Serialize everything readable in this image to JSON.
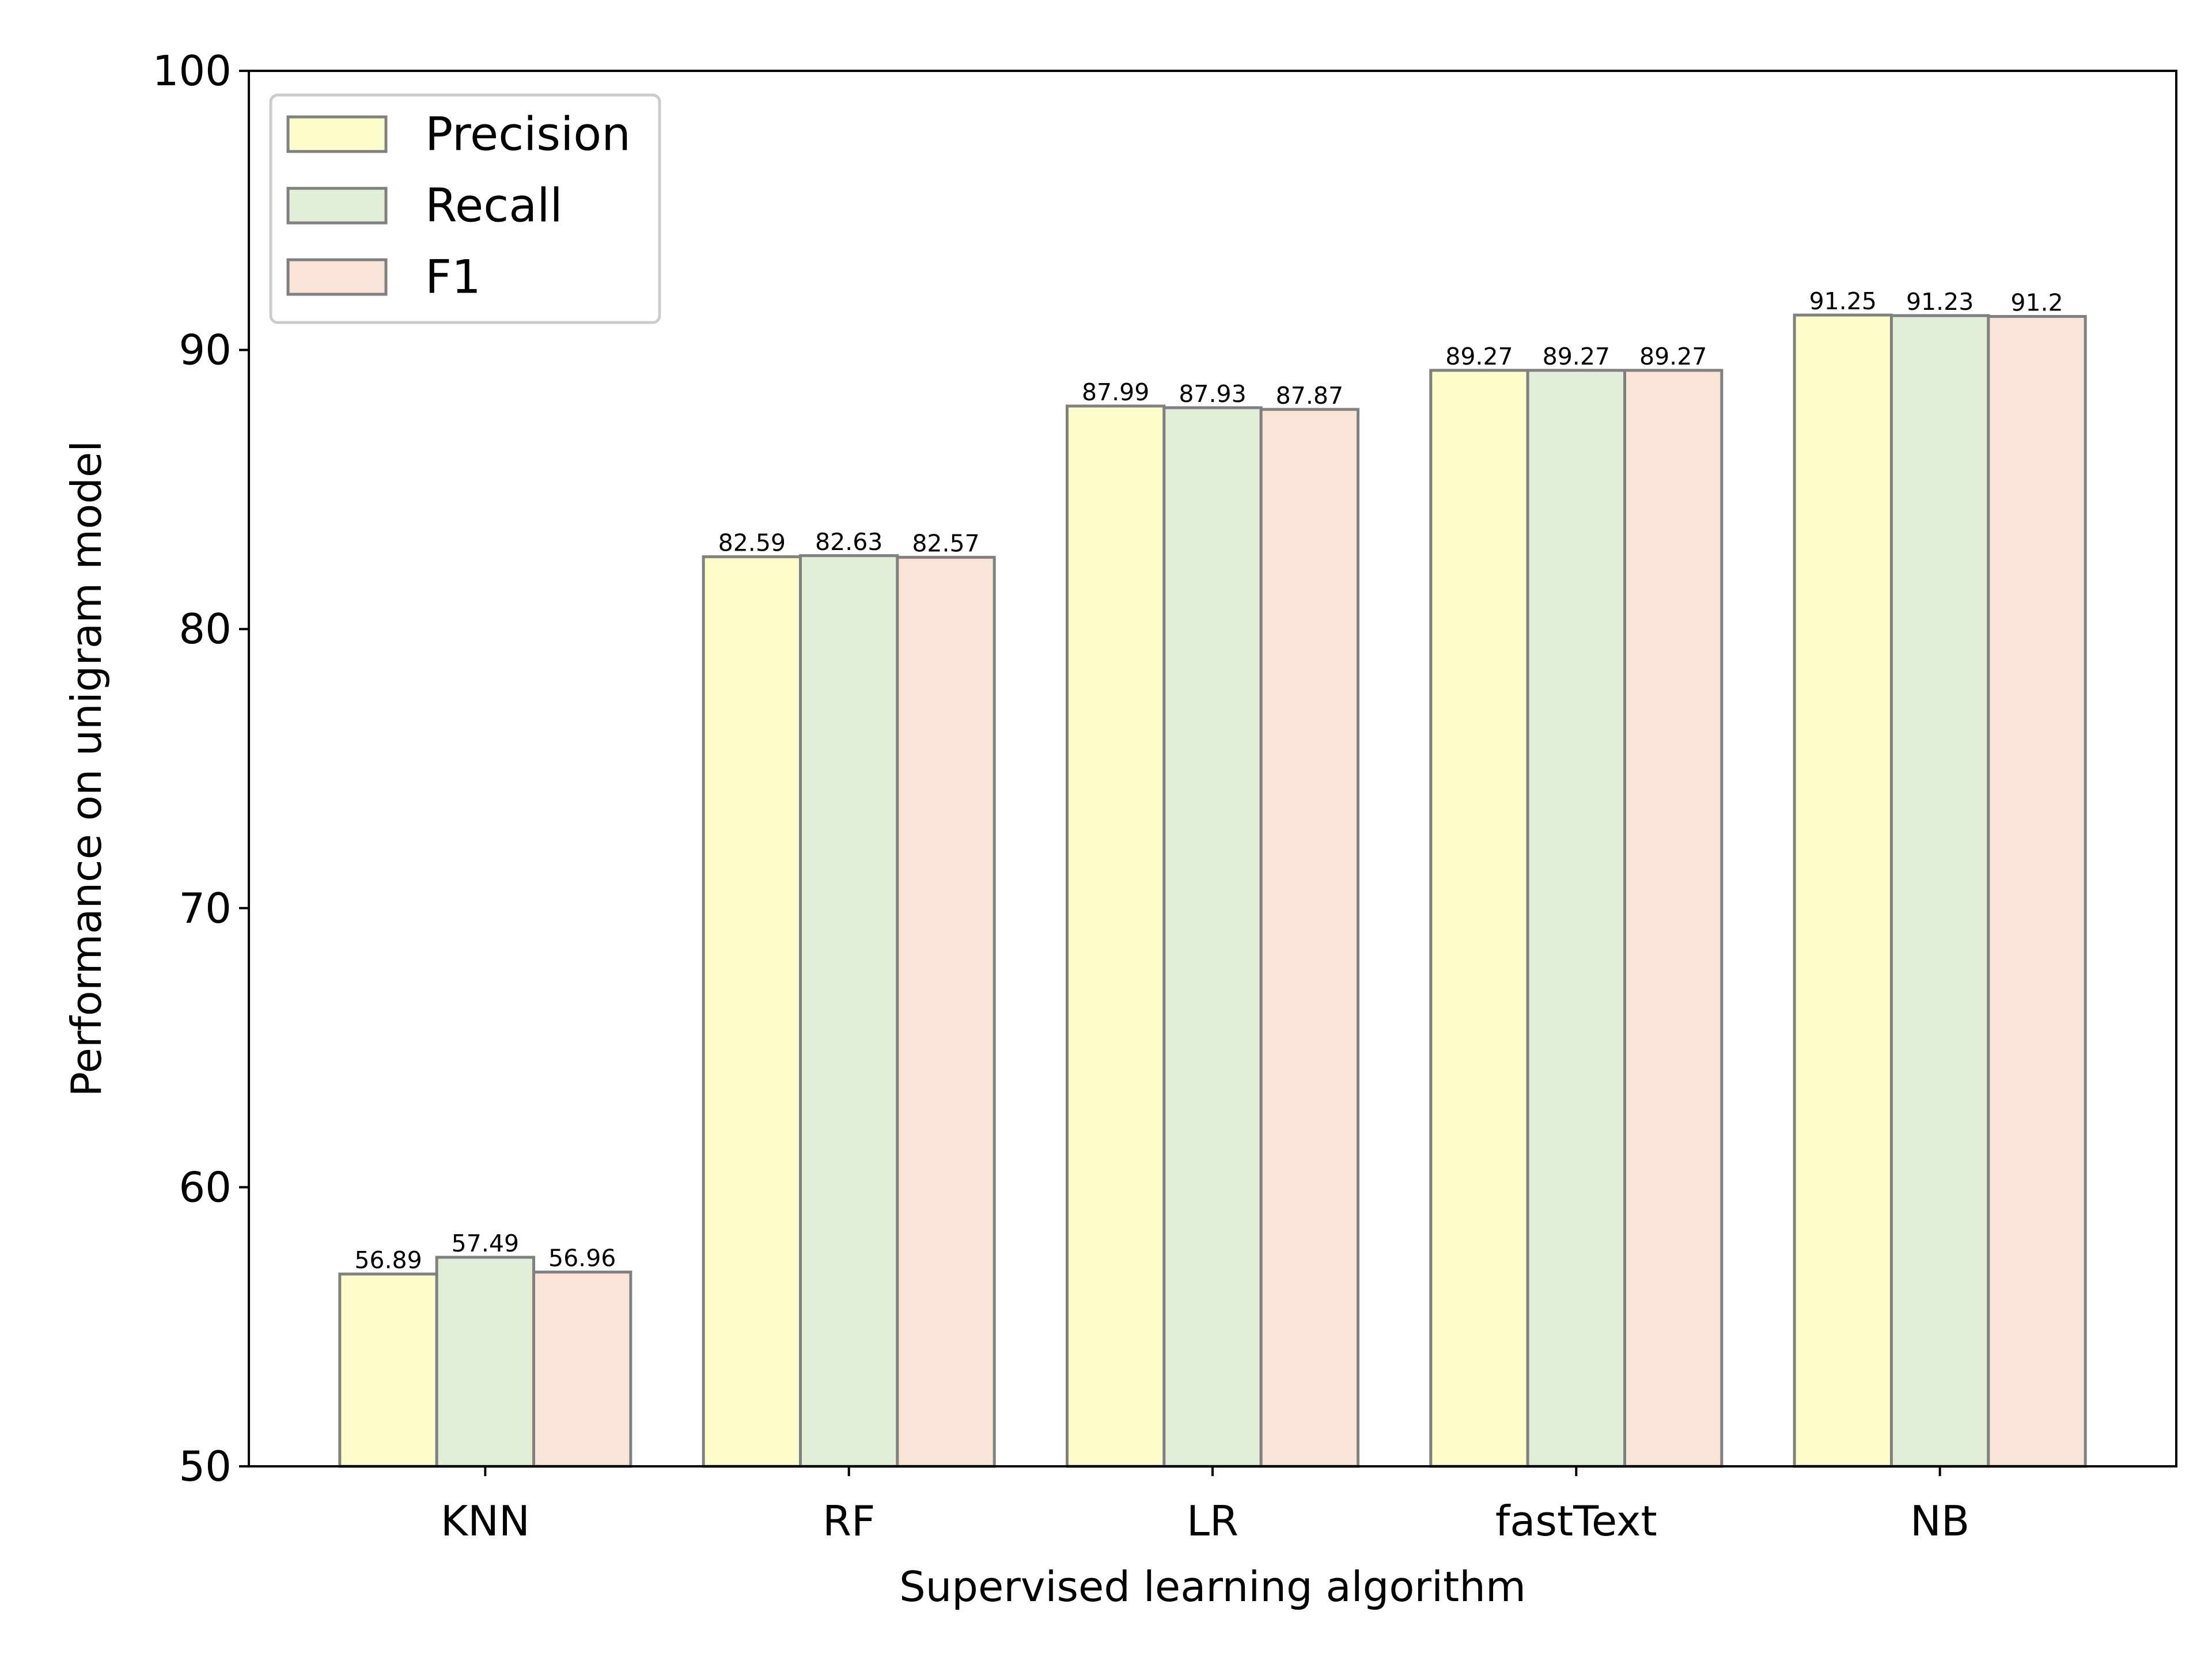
{
  "chart_data": {
    "type": "bar",
    "title": "",
    "xlabel": "Supervised learning algorithm",
    "ylabel": "Performance on unigram model",
    "categories": [
      "KNN",
      "RF",
      "LR",
      "fastText",
      "NB"
    ],
    "ylim": [
      50,
      100
    ],
    "yticks": [
      "50",
      "60",
      "70",
      "80",
      "90",
      "100"
    ],
    "grid": false,
    "legend_position": "top-left",
    "series": [
      {
        "name": "Precision",
        "color": "#fdfdca",
        "values": [
          56.89,
          82.59,
          87.99,
          89.27,
          91.25
        ],
        "labels": [
          "56.89",
          "82.59",
          "87.99",
          "89.27",
          "91.25"
        ]
      },
      {
        "name": "Recall",
        "color": "#e1efd8",
        "values": [
          57.49,
          82.63,
          87.93,
          89.27,
          91.23
        ],
        "labels": [
          "57.49",
          "82.63",
          "87.93",
          "89.27",
          "91.23"
        ]
      },
      {
        "name": "F1",
        "color": "#f9e5d8",
        "values": [
          56.96,
          82.57,
          87.87,
          89.27,
          91.2
        ],
        "labels": [
          "56.96",
          "82.57",
          "87.87",
          "89.27",
          "91.2"
        ]
      }
    ],
    "edge_color": "#808080"
  }
}
